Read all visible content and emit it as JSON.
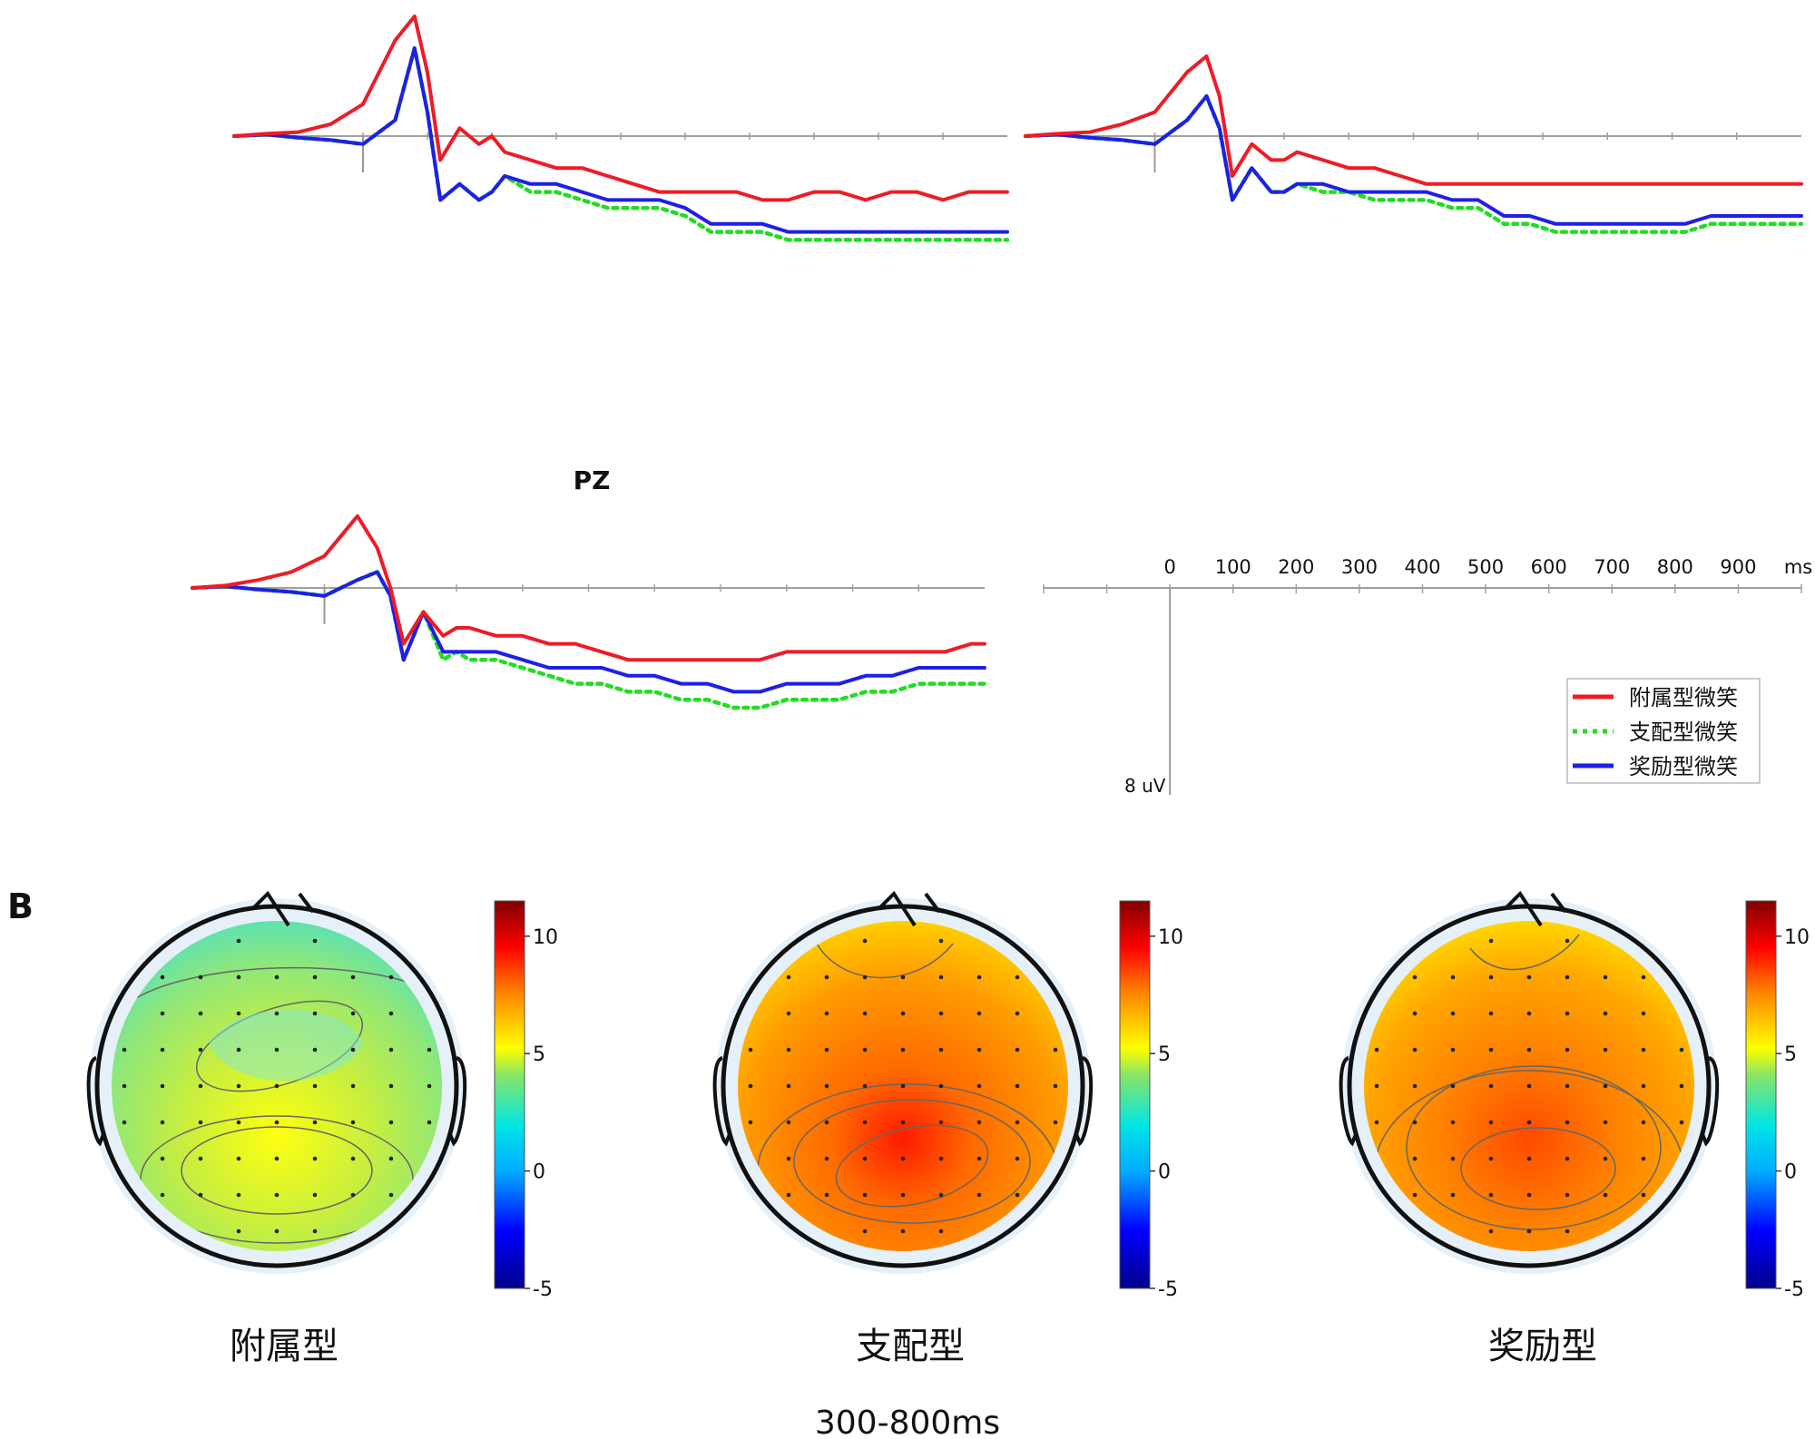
{
  "chart_data": {
    "type": "line",
    "panel_a": {
      "x_unit": "ms",
      "y_unit": "uV",
      "xlim": [
        -200,
        1000
      ],
      "x_ticks": [
        0,
        100,
        200,
        300,
        400,
        500,
        600,
        700,
        800,
        900
      ],
      "x_tick_labels": [
        "0",
        "100",
        "200",
        "300",
        "400",
        "500",
        "600",
        "700",
        "800",
        "900",
        "ms"
      ],
      "scale_bar_label": "8 uV",
      "scale_bar_uv": 8,
      "legend": [
        {
          "name": "附属型微笑",
          "color": "#ee1c24",
          "style": "solid"
        },
        {
          "name": "支配型微笑",
          "color": "#22dd22",
          "style": "dotted"
        },
        {
          "name": "奖励型微笑",
          "color": "#1f1fe6",
          "style": "solid"
        }
      ],
      "x": [
        -200,
        -150,
        -100,
        -50,
        0,
        50,
        80,
        100,
        120,
        150,
        180,
        200,
        220,
        260,
        300,
        340,
        380,
        420,
        460,
        500,
        540,
        580,
        620,
        660,
        700,
        740,
        780,
        820,
        860,
        900,
        940,
        980,
        1000
      ],
      "plots": [
        {
          "label": "",
          "series": [
            {
              "name": "附属型微笑",
              "values": [
                0,
                0.3,
                0.5,
                1.5,
                4,
                12,
                15,
                8,
                -3,
                1,
                -1,
                0,
                -2,
                -3,
                -4,
                -4,
                -5,
                -6,
                -7,
                -7,
                -7,
                -7,
                -8,
                -8,
                -7,
                -7,
                -8,
                -7,
                -7,
                -8,
                -7,
                -7,
                -7
              ]
            },
            {
              "name": "支配型微笑",
              "values": [
                0,
                0.2,
                -0.2,
                -0.5,
                -1,
                2,
                11,
                3,
                -8,
                -6,
                -8,
                -7,
                -5,
                -7,
                -7,
                -8,
                -9,
                -9,
                -9,
                -10,
                -12,
                -12,
                -12,
                -13,
                -13,
                -13,
                -13,
                -13,
                -13,
                -13,
                -13,
                -13,
                -13
              ]
            },
            {
              "name": "奖励型微笑",
              "values": [
                0,
                0.2,
                -0.2,
                -0.5,
                -1,
                2,
                11,
                3,
                -8,
                -6,
                -8,
                -7,
                -5,
                -6,
                -6,
                -7,
                -8,
                -8,
                -8,
                -9,
                -11,
                -11,
                -11,
                -12,
                -12,
                -12,
                -12,
                -12,
                -12,
                -12,
                -12,
                -12,
                -12
              ]
            }
          ]
        },
        {
          "label": "",
          "series": [
            {
              "name": "附属型微笑",
              "values": [
                0,
                0.3,
                0.5,
                1.5,
                3,
                8,
                10,
                5,
                -5,
                -1,
                -3,
                -3,
                -2,
                -3,
                -4,
                -4,
                -5,
                -6,
                -6,
                -6,
                -6,
                -6,
                -6,
                -6,
                -6,
                -6,
                -6,
                -6,
                -6,
                -6,
                -6,
                -6,
                -6
              ]
            },
            {
              "name": "支配型微笑",
              "values": [
                0,
                0.2,
                -0.2,
                -0.5,
                -1,
                2,
                5,
                1,
                -8,
                -4,
                -7,
                -7,
                -6,
                -7,
                -7,
                -8,
                -8,
                -8,
                -9,
                -9,
                -11,
                -11,
                -12,
                -12,
                -12,
                -12,
                -12,
                -12,
                -11,
                -11,
                -11,
                -11,
                -11
              ]
            },
            {
              "name": "奖励型微笑",
              "values": [
                0,
                0.2,
                -0.2,
                -0.5,
                -1,
                2,
                5,
                1,
                -8,
                -4,
                -7,
                -7,
                -6,
                -6,
                -7,
                -7,
                -7,
                -7,
                -8,
                -8,
                -10,
                -10,
                -11,
                -11,
                -11,
                -11,
                -11,
                -11,
                -10,
                -10,
                -10,
                -10,
                -10
              ]
            }
          ]
        },
        {
          "label": "PZ",
          "series": [
            {
              "name": "附属型微笑",
              "values": [
                0,
                0.3,
                1,
                2,
                4,
                9,
                5,
                0,
                -7,
                -3,
                -6,
                -5,
                -5,
                -6,
                -6,
                -7,
                -7,
                -8,
                -9,
                -9,
                -9,
                -9,
                -9,
                -9,
                -8,
                -8,
                -8,
                -8,
                -8,
                -8,
                -8,
                -7,
                -7
              ]
            },
            {
              "name": "支配型微笑",
              "values": [
                0,
                0.2,
                -0.2,
                -0.5,
                -1,
                1,
                2,
                -1,
                -9,
                -3,
                -9,
                -8,
                -9,
                -9,
                -10,
                -11,
                -12,
                -12,
                -13,
                -13,
                -14,
                -14,
                -15,
                -15,
                -14,
                -14,
                -14,
                -13,
                -13,
                -12,
                -12,
                -12,
                -12
              ]
            },
            {
              "name": "奖励型微笑",
              "values": [
                0,
                0.2,
                -0.2,
                -0.5,
                -1,
                1,
                2,
                -1,
                -9,
                -3,
                -8,
                -8,
                -8,
                -8,
                -9,
                -10,
                -10,
                -10,
                -11,
                -11,
                -12,
                -12,
                -13,
                -13,
                -12,
                -12,
                -12,
                -11,
                -11,
                -10,
                -10,
                -10,
                -10
              ]
            }
          ]
        }
      ]
    },
    "panel_b": {
      "type": "heatmap",
      "panel_label": "B",
      "time_window": "300-800ms",
      "colorbar_ticks": [
        "10",
        "5",
        "0",
        "-5"
      ],
      "colorbar_range": [
        -5,
        11.5
      ],
      "maps": [
        {
          "label": "附属型",
          "peak_value": 5,
          "base_value": 3
        },
        {
          "label": "支配型",
          "peak_value": 9,
          "base_value": 7
        },
        {
          "label": "奖励型",
          "peak_value": 8.5,
          "base_value": 7
        }
      ]
    }
  }
}
